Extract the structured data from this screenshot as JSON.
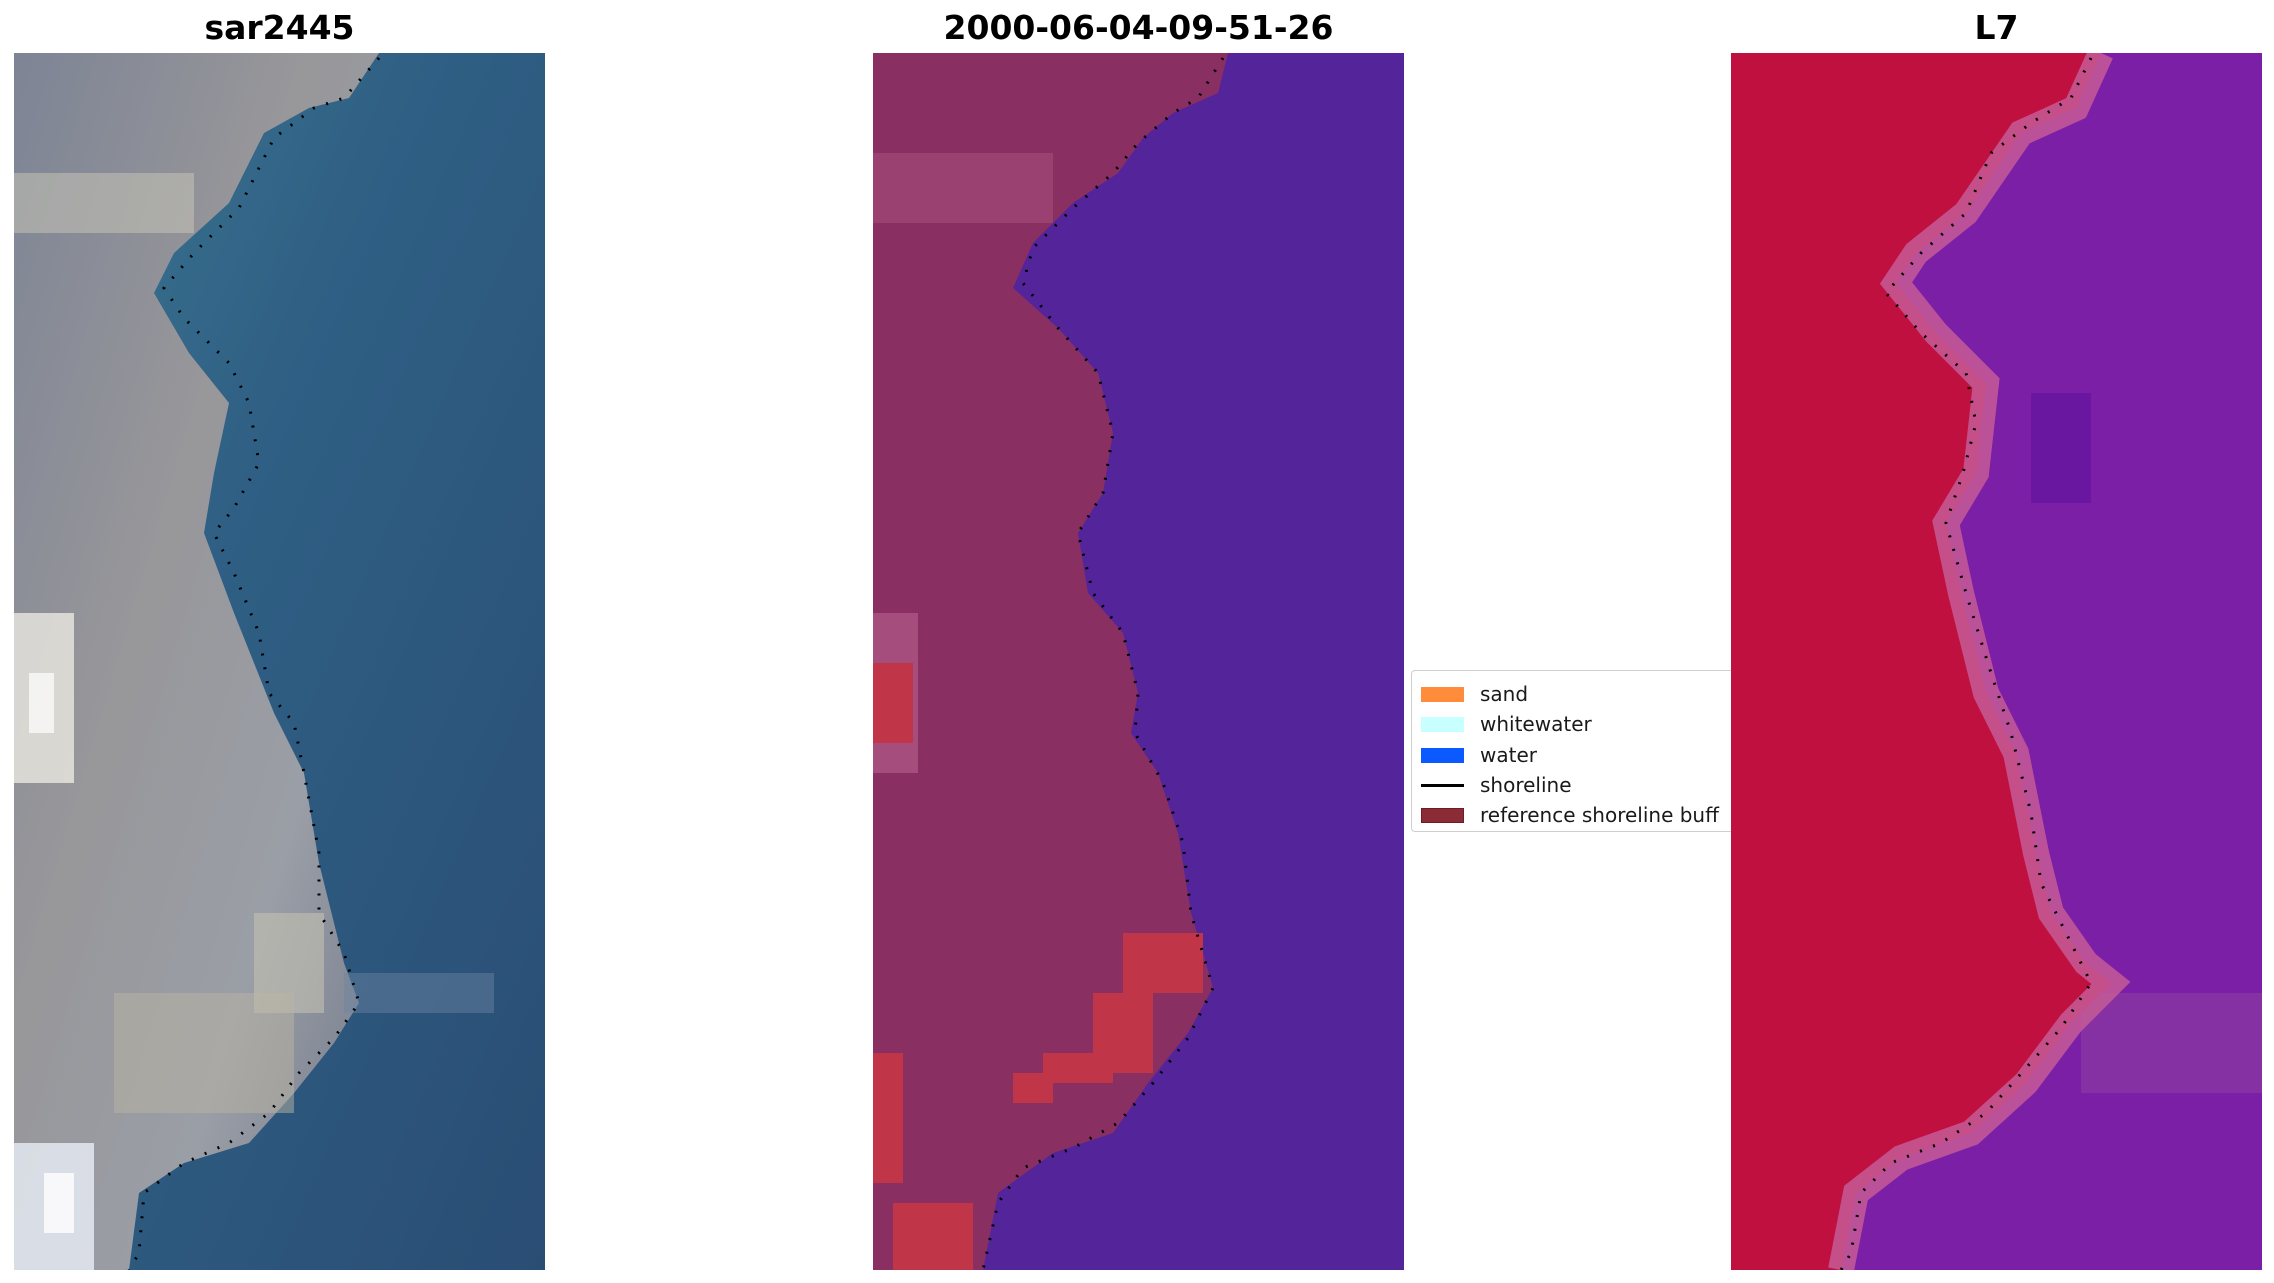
{
  "panels": [
    {
      "title": "sar2445",
      "image": "natural-color satellite image of coastline"
    },
    {
      "title": "2000-06-04-09-51-26",
      "image": "classified image with water mask"
    },
    {
      "title": "L7",
      "image": "false-color satellite image"
    }
  ],
  "legend": {
    "items": [
      {
        "label": "sand",
        "color": "#ff8c3b",
        "kind": "patch"
      },
      {
        "label": "whitewater",
        "color": "#c8ffff",
        "kind": "patch"
      },
      {
        "label": "water",
        "color": "#0a5aff",
        "kind": "patch"
      },
      {
        "label": "shoreline",
        "color": "#000000",
        "kind": "line"
      },
      {
        "label": "reference shoreline buff",
        "color": "#8b2b35",
        "kind": "patch"
      }
    ]
  },
  "colors": {
    "rgb_land": "#8f95a0",
    "rgb_water": "#2f5a80",
    "class_land": "#8a2f62",
    "class_water": "#54249b",
    "class_buffer": "#c03548",
    "ir_land": "#c0103f",
    "ir_water": "#7a1fa6",
    "shoreline_dots": "#000000"
  }
}
